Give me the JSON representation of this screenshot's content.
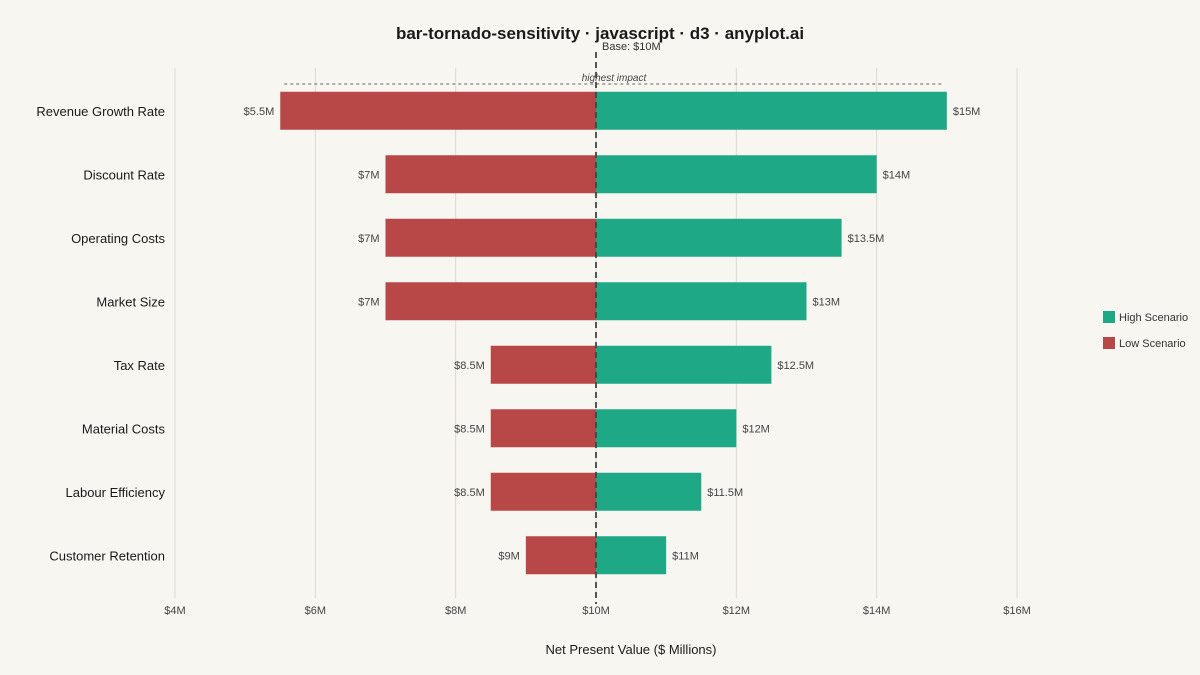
{
  "title": "bar-tornado-sensitivity · javascript · d3 · anyplot.ai",
  "chart_data": {
    "type": "bar",
    "orientation": "horizontal",
    "subtype": "tornado",
    "title": "bar-tornado-sensitivity · javascript · d3 · anyplot.ai",
    "xlabel": "Net Present Value ($ Millions)",
    "ylabel": "",
    "xlim": [
      4,
      16
    ],
    "x_ticks": [
      4,
      6,
      8,
      10,
      12,
      14,
      16
    ],
    "x_tick_labels": [
      "$4M",
      "$6M",
      "$8M",
      "$10M",
      "$12M",
      "$14M",
      "$16M"
    ],
    "base_value": 10,
    "base_label": "Base: $10M",
    "annotation": "highest impact",
    "grid": true,
    "legend_position": "right",
    "categories": [
      "Revenue Growth Rate",
      "Discount Rate",
      "Operating Costs",
      "Market Size",
      "Tax Rate",
      "Material Costs",
      "Labour Efficiency",
      "Customer Retention"
    ],
    "series": [
      {
        "name": "Low Scenario",
        "color": "#B84848",
        "values": [
          5.5,
          7,
          7,
          7,
          8.5,
          8.5,
          8.5,
          9
        ],
        "labels": [
          "$5.5M",
          "$7M",
          "$7M",
          "$7M",
          "$8.5M",
          "$8.5M",
          "$8.5M",
          "$9M"
        ]
      },
      {
        "name": "High Scenario",
        "color": "#1FA885",
        "values": [
          15,
          14,
          13.5,
          13,
          12.5,
          12,
          11.5,
          11
        ],
        "labels": [
          "$15M",
          "$14M",
          "$13.5M",
          "$13M",
          "$12.5M",
          "$12M",
          "$11.5M",
          "$11M"
        ]
      }
    ],
    "legend": [
      {
        "label": "High Scenario",
        "color": "#1FA885"
      },
      {
        "label": "Low Scenario",
        "color": "#B84848"
      }
    ]
  }
}
